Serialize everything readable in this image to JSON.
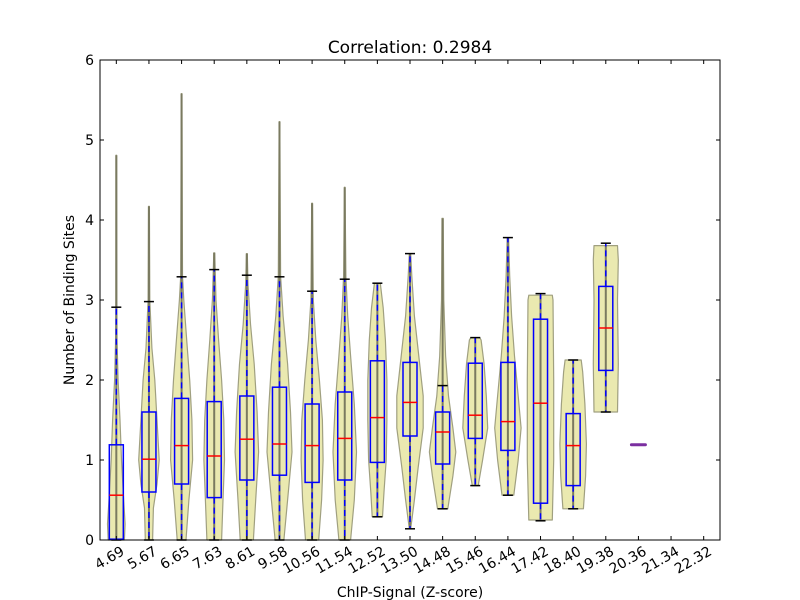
{
  "chart_data": {
    "type": "violin+box",
    "title": "Correlation: 0.2984",
    "xlabel": "ChIP-Signal (Z-score)",
    "ylabel": "Number of Binding Sites",
    "ylim": [
      0,
      6
    ],
    "yticks": [
      0,
      1,
      2,
      3,
      4,
      5,
      6
    ],
    "categories": [
      "4.69",
      "5.67",
      "6.65",
      "7.63",
      "8.61",
      "9.58",
      "10.56",
      "11.54",
      "12.52",
      "13.50",
      "14.48",
      "15.46",
      "16.44",
      "17.42",
      "18.40",
      "19.38",
      "20.36",
      "21.34",
      "22.32"
    ],
    "grid": false,
    "colors": {
      "violin_fill": "#eae9b0",
      "violin_edge": "#a0a080",
      "box": "#0000ff",
      "median": "#ff0000",
      "whisker": "#0000ff",
      "cap": "#000000",
      "single_point": "#7b2fa0"
    },
    "boxes": [
      {
        "low": 0,
        "q1": 0.01,
        "median": 0.56,
        "q3": 1.19,
        "high": 2.91
      },
      {
        "low": 0,
        "q1": 0.6,
        "median": 1.01,
        "q3": 1.6,
        "high": 2.98
      },
      {
        "low": 0,
        "q1": 0.7,
        "median": 1.18,
        "q3": 1.77,
        "high": 3.29
      },
      {
        "low": 0,
        "q1": 0.53,
        "median": 1.05,
        "q3": 1.73,
        "high": 3.38
      },
      {
        "low": 0,
        "q1": 0.75,
        "median": 1.26,
        "q3": 1.8,
        "high": 3.31
      },
      {
        "low": 0,
        "q1": 0.81,
        "median": 1.2,
        "q3": 1.91,
        "high": 3.29
      },
      {
        "low": 0,
        "q1": 0.72,
        "median": 1.18,
        "q3": 1.7,
        "high": 3.11
      },
      {
        "low": 0,
        "q1": 0.75,
        "median": 1.27,
        "q3": 1.85,
        "high": 3.26
      },
      {
        "low": 0.29,
        "q1": 0.97,
        "median": 1.53,
        "q3": 2.24,
        "high": 3.21
      },
      {
        "low": 0.14,
        "q1": 1.3,
        "median": 1.72,
        "q3": 2.22,
        "high": 3.58
      },
      {
        "low": 0.39,
        "q1": 0.95,
        "median": 1.35,
        "q3": 1.6,
        "high": 1.93
      },
      {
        "low": 0.68,
        "q1": 1.27,
        "median": 1.56,
        "q3": 2.21,
        "high": 2.53
      },
      {
        "low": 0.56,
        "q1": 1.12,
        "median": 1.48,
        "q3": 2.22,
        "high": 3.78
      },
      {
        "low": 0.24,
        "q1": 0.46,
        "median": 1.71,
        "q3": 2.76,
        "high": 3.08
      },
      {
        "low": 0.39,
        "q1": 0.68,
        "median": 1.18,
        "q3": 1.58,
        "high": 2.25
      },
      {
        "low": 1.6,
        "q1": 2.12,
        "median": 2.65,
        "q3": 3.17,
        "high": 3.71
      },
      {
        "single": 1.19
      },
      null,
      null
    ],
    "violins": [
      [
        [
          0,
          0.55
        ],
        [
          0.2,
          0.6
        ],
        [
          0.5,
          0.5
        ],
        [
          1,
          0.35
        ],
        [
          1.5,
          0.25
        ],
        [
          2,
          0.12
        ],
        [
          2.5,
          0.05
        ],
        [
          3,
          0.03
        ],
        [
          4.81,
          0.02
        ]
      ],
      [
        [
          0,
          0.25
        ],
        [
          0.4,
          0.3
        ],
        [
          0.7,
          0.55
        ],
        [
          1,
          0.7
        ],
        [
          1.5,
          0.55
        ],
        [
          2,
          0.4
        ],
        [
          2.4,
          0.2
        ],
        [
          3,
          0.06
        ],
        [
          4.17,
          0.03
        ]
      ],
      [
        [
          0,
          0.3
        ],
        [
          0.5,
          0.5
        ],
        [
          1.0,
          0.75
        ],
        [
          1.5,
          0.7
        ],
        [
          2,
          0.55
        ],
        [
          2.5,
          0.35
        ],
        [
          3,
          0.15
        ],
        [
          3.3,
          0.06
        ],
        [
          5.58,
          0.02
        ]
      ],
      [
        [
          0,
          0.5
        ],
        [
          0.5,
          0.6
        ],
        [
          1,
          0.7
        ],
        [
          1.5,
          0.65
        ],
        [
          2,
          0.5
        ],
        [
          2.5,
          0.3
        ],
        [
          3,
          0.12
        ],
        [
          3.59,
          0.03
        ]
      ],
      [
        [
          0,
          0.45
        ],
        [
          0.5,
          0.6
        ],
        [
          1.1,
          0.8
        ],
        [
          1.6,
          0.7
        ],
        [
          2.2,
          0.5
        ],
        [
          2.7,
          0.25
        ],
        [
          3.2,
          0.08
        ],
        [
          3.58,
          0.03
        ]
      ],
      [
        [
          0,
          0.3
        ],
        [
          0.5,
          0.55
        ],
        [
          1.1,
          0.85
        ],
        [
          1.6,
          0.75
        ],
        [
          2.2,
          0.55
        ],
        [
          2.8,
          0.25
        ],
        [
          3.3,
          0.08
        ],
        [
          5.23,
          0.02
        ]
      ],
      [
        [
          0,
          0.45
        ],
        [
          0.5,
          0.65
        ],
        [
          1,
          0.75
        ],
        [
          1.5,
          0.7
        ],
        [
          2,
          0.5
        ],
        [
          2.5,
          0.25
        ],
        [
          3,
          0.08
        ],
        [
          4.21,
          0.03
        ]
      ],
      [
        [
          0,
          0.4
        ],
        [
          0.5,
          0.65
        ],
        [
          1.1,
          0.8
        ],
        [
          1.7,
          0.65
        ],
        [
          2.3,
          0.4
        ],
        [
          2.8,
          0.2
        ],
        [
          3.3,
          0.08
        ],
        [
          4.41,
          0.02
        ]
      ],
      [
        [
          0.29,
          0.35
        ],
        [
          0.6,
          0.45
        ],
        [
          1,
          0.6
        ],
        [
          1.5,
          0.65
        ],
        [
          2,
          0.65
        ],
        [
          2.5,
          0.55
        ],
        [
          2.9,
          0.4
        ],
        [
          3.21,
          0.2
        ]
      ],
      [
        [
          0.14,
          0.05
        ],
        [
          0.5,
          0.3
        ],
        [
          0.9,
          0.55
        ],
        [
          1.4,
          0.9
        ],
        [
          1.8,
          0.9
        ],
        [
          2.3,
          0.6
        ],
        [
          2.8,
          0.3
        ],
        [
          3.3,
          0.12
        ],
        [
          3.58,
          0.05
        ]
      ],
      [
        [
          0.39,
          0.35
        ],
        [
          0.8,
          0.7
        ],
        [
          1.1,
          0.9
        ],
        [
          1.4,
          0.7
        ],
        [
          1.8,
          0.4
        ],
        [
          2.3,
          0.2
        ],
        [
          3,
          0.08
        ],
        [
          4.02,
          0.04
        ]
      ],
      [
        [
          0.68,
          0.2
        ],
        [
          1,
          0.5
        ],
        [
          1.4,
          0.85
        ],
        [
          1.8,
          0.75
        ],
        [
          2.2,
          0.6
        ],
        [
          2.5,
          0.4
        ],
        [
          2.53,
          0.3
        ]
      ],
      [
        [
          0.56,
          0.4
        ],
        [
          1,
          0.7
        ],
        [
          1.4,
          0.9
        ],
        [
          1.8,
          0.7
        ],
        [
          2.3,
          0.45
        ],
        [
          2.8,
          0.25
        ],
        [
          3.3,
          0.12
        ],
        [
          3.78,
          0.05
        ]
      ],
      [
        [
          0.25,
          0.8
        ],
        [
          1,
          0.9
        ],
        [
          2,
          0.9
        ],
        [
          3,
          0.85
        ],
        [
          3.06,
          0.8
        ]
      ],
      [
        [
          0.39,
          0.7
        ],
        [
          0.8,
          0.85
        ],
        [
          1.2,
          0.9
        ],
        [
          1.7,
          0.8
        ],
        [
          2.1,
          0.65
        ],
        [
          2.25,
          0.55
        ]
      ],
      [
        [
          1.6,
          0.8
        ],
        [
          2.2,
          0.85
        ],
        [
          3,
          0.8
        ],
        [
          3.5,
          0.85
        ],
        [
          3.68,
          0.8
        ]
      ],
      null,
      null,
      null
    ]
  }
}
